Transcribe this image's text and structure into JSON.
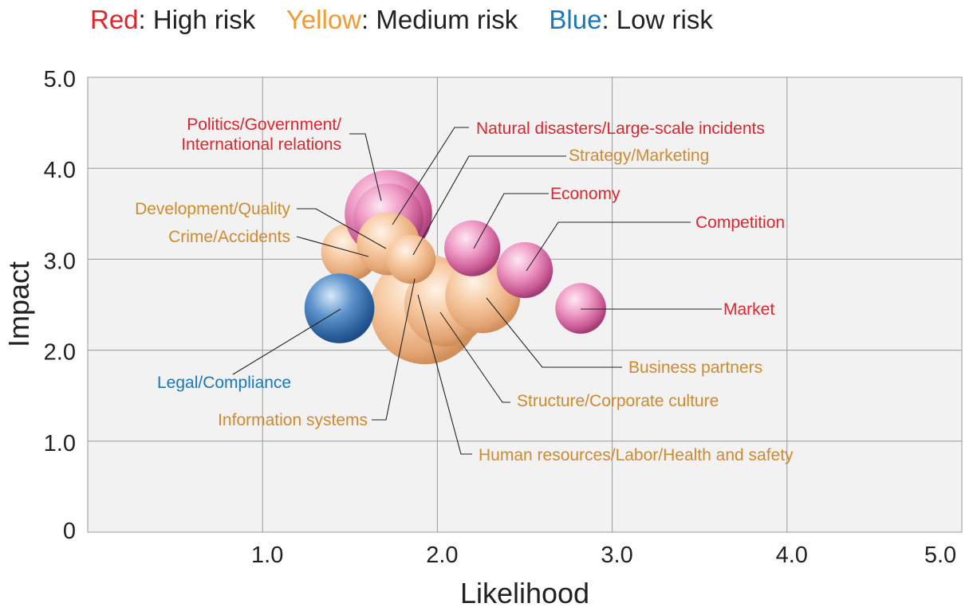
{
  "legend": {
    "items": [
      {
        "key": "Red",
        "desc": ": High risk",
        "color": "#e0252f"
      },
      {
        "key": "Yellow",
        "desc": ": Medium risk",
        "color": "#f29a2e"
      },
      {
        "key": "Blue",
        "desc": ": Low risk",
        "color": "#1a77b8"
      }
    ]
  },
  "chart_data": {
    "type": "scatter",
    "subtype": "bubble",
    "xlabel": "Likelihood",
    "ylabel": "Impact",
    "xlim": [
      0,
      5
    ],
    "ylim": [
      0,
      5
    ],
    "xticks": [
      "1.0",
      "2.0",
      "3.0",
      "4.0",
      "5.0"
    ],
    "yticks": [
      "0",
      "1.0",
      "2.0",
      "3.0",
      "4.0",
      "5.0"
    ],
    "grid": true,
    "background": "#f2f2f2",
    "label_colors": {
      "high": "#e0252f",
      "medium": "#cf8a2e",
      "low": "#1a77b8"
    },
    "points": [
      {
        "name": "Human resources/Labor/Health and safety",
        "risk": "medium",
        "x": 1.93,
        "y": 2.45,
        "r": 0.63
      },
      {
        "name": "Structure/Corporate culture",
        "risk": "medium",
        "x": 2.05,
        "y": 2.5,
        "r": 0.48
      },
      {
        "name": "Business partners",
        "risk": "medium",
        "x": 2.26,
        "y": 2.6,
        "r": 0.43
      },
      {
        "name": "Crime/Accidents",
        "risk": "medium",
        "x": 1.5,
        "y": 3.08,
        "r": 0.33
      },
      {
        "name": "Politics/Government/International relations",
        "risk": "high",
        "x": 1.72,
        "y": 3.5,
        "r": 0.5
      },
      {
        "name": "Natural disasters/Large-scale incidents",
        "risk": "high",
        "x": 1.72,
        "y": 3.45,
        "r": 0.4
      },
      {
        "name": "Development/Quality",
        "risk": "medium",
        "x": 1.72,
        "y": 3.17,
        "r": 0.36
      },
      {
        "name": "Information systems",
        "risk": "medium",
        "x": 1.85,
        "y": 3.0,
        "r": 0.28
      },
      {
        "name": "Economy",
        "risk": "high",
        "x": 2.2,
        "y": 3.12,
        "r": 0.32
      },
      {
        "name": "Competition",
        "risk": "high",
        "x": 2.5,
        "y": 2.88,
        "r": 0.32
      },
      {
        "name": "Market",
        "risk": "high",
        "x": 2.82,
        "y": 2.46,
        "r": 0.29
      },
      {
        "name": "Legal/Compliance",
        "risk": "low",
        "x": 1.44,
        "y": 2.46,
        "r": 0.4
      }
    ],
    "labels": [
      {
        "name": "Politics/Government/",
        "risk": "high"
      },
      {
        "name": "International relations",
        "risk": "high"
      },
      {
        "name": "Natural disasters/Large-scale incidents",
        "risk": "high"
      },
      {
        "name": "Strategy/Marketing",
        "risk": "medium"
      },
      {
        "name": "Economy",
        "risk": "high"
      },
      {
        "name": "Development/Quality",
        "risk": "medium"
      },
      {
        "name": "Crime/Accidents",
        "risk": "medium"
      },
      {
        "name": "Competition",
        "risk": "high"
      },
      {
        "name": "Market",
        "risk": "high"
      },
      {
        "name": "Business partners",
        "risk": "medium"
      },
      {
        "name": "Legal/Compliance",
        "risk": "low"
      },
      {
        "name": "Structure/Corporate culture",
        "risk": "medium"
      },
      {
        "name": "Information systems",
        "risk": "medium"
      },
      {
        "name": "Human resources/Labor/Health and safety",
        "risk": "medium"
      }
    ]
  }
}
